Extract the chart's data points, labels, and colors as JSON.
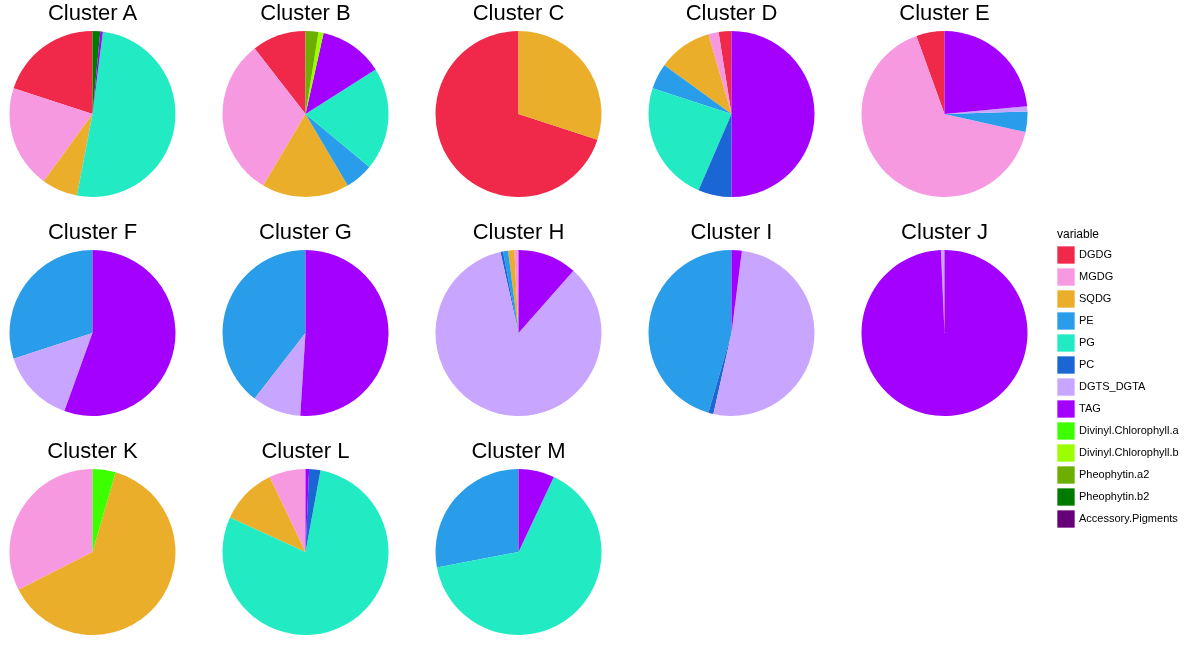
{
  "chart_data": [
    {
      "type": "pie",
      "title": "Cluster A",
      "legend": "right",
      "legend_title": "variable",
      "categories": [
        "DGDG",
        "MGDG",
        "SQDG",
        "PE",
        "PG",
        "PC",
        "DGTS_DGTA",
        "TAG",
        "Divinyl.Chlorophyll.a",
        "Divinyl.Chlorophyll.b",
        "Pheophytin.a2",
        "Pheophytin.b2",
        "Accessory.Pigments"
      ],
      "values": [
        20,
        20,
        7,
        0,
        51,
        0,
        0,
        0.5,
        0,
        0,
        0,
        1.5,
        0
      ],
      "colors": [
        "#f0284a",
        "#f799e1",
        "#ebae2b",
        "#299dea",
        "#22ebc4",
        "#1a66d4",
        "#c8a6ff",
        "#a300ff",
        "#3eff00",
        "#9bff00",
        "#6caf00",
        "#007b00",
        "#650078"
      ]
    },
    {
      "type": "pie",
      "title": "Cluster B",
      "categories": [
        null,
        null,
        null,
        null,
        null,
        null,
        null,
        null,
        null,
        null,
        null,
        null,
        null
      ],
      "values": [
        10.5,
        31,
        17,
        5.5,
        20,
        0,
        0,
        12.5,
        0,
        1,
        2.5,
        0,
        0
      ],
      "colors": [
        "#f0284a",
        "#f799e1",
        "#ebae2b",
        "#299dea",
        "#22ebc4",
        "#1a66d4",
        "#c8a6ff",
        "#a300ff",
        "#3eff00",
        "#9bff00",
        "#6caf00",
        "#007b00",
        "#650078"
      ]
    },
    {
      "type": "pie",
      "title": "Cluster C",
      "categories": [
        null,
        null,
        null,
        null,
        null,
        null,
        null,
        null,
        null,
        null,
        null,
        null,
        null
      ],
      "values": [
        70,
        0,
        30,
        0,
        0,
        0,
        0,
        0,
        0,
        0,
        0,
        0,
        0
      ],
      "colors": [
        "#f0284a",
        "#f799e1",
        "#ebae2b",
        "#299dea",
        "#22ebc4",
        "#1a66d4",
        "#c8a6ff",
        "#a300ff",
        "#3eff00",
        "#9bff00",
        "#6caf00",
        "#007b00",
        "#650078"
      ]
    },
    {
      "type": "pie",
      "title": "Cluster D",
      "categories": [
        null,
        null,
        null,
        null,
        null,
        null,
        null,
        null,
        null,
        null,
        null,
        null,
        null
      ],
      "values": [
        2.5,
        2,
        10.5,
        5,
        23.5,
        6.5,
        0,
        50,
        0,
        0,
        0,
        0,
        0
      ],
      "colors": [
        "#f0284a",
        "#f799e1",
        "#ebae2b",
        "#299dea",
        "#22ebc4",
        "#1a66d4",
        "#c8a6ff",
        "#a300ff",
        "#3eff00",
        "#9bff00",
        "#6caf00",
        "#007b00",
        "#650078"
      ]
    },
    {
      "type": "pie",
      "title": "Cluster E",
      "categories": [
        null,
        null,
        null,
        null,
        null,
        null,
        null,
        null,
        null,
        null,
        null,
        null,
        null
      ],
      "values": [
        5.5,
        66,
        0,
        4,
        0,
        0,
        1,
        23.5,
        0,
        0,
        0,
        0,
        0
      ],
      "colors": [
        "#f0284a",
        "#f799e1",
        "#ebae2b",
        "#299dea",
        "#22ebc4",
        "#1a66d4",
        "#c8a6ff",
        "#a300ff",
        "#3eff00",
        "#9bff00",
        "#6caf00",
        "#007b00",
        "#650078"
      ]
    },
    {
      "type": "pie",
      "title": "Cluster F",
      "categories": [
        null,
        null,
        null,
        null,
        null,
        null,
        null,
        null,
        null,
        null,
        null,
        null,
        null
      ],
      "values": [
        0,
        0,
        0,
        30,
        0,
        0,
        14.5,
        55.5,
        0,
        0,
        0,
        0,
        0
      ],
      "colors": [
        "#f0284a",
        "#f799e1",
        "#ebae2b",
        "#299dea",
        "#22ebc4",
        "#1a66d4",
        "#c8a6ff",
        "#a300ff",
        "#3eff00",
        "#9bff00",
        "#6caf00",
        "#007b00",
        "#650078"
      ]
    },
    {
      "type": "pie",
      "title": "Cluster G",
      "categories": [
        null,
        null,
        null,
        null,
        null,
        null,
        null,
        null,
        null,
        null,
        null,
        null,
        null
      ],
      "values": [
        0,
        0,
        0,
        39.5,
        0,
        0,
        9.5,
        51,
        0,
        0,
        0,
        0,
        0
      ],
      "colors": [
        "#f0284a",
        "#f799e1",
        "#ebae2b",
        "#299dea",
        "#22ebc4",
        "#1a66d4",
        "#c8a6ff",
        "#a300ff",
        "#3eff00",
        "#9bff00",
        "#6caf00",
        "#007b00",
        "#650078"
      ]
    },
    {
      "type": "pie",
      "title": "Cluster H",
      "categories": [
        null,
        null,
        null,
        null,
        null,
        null,
        null,
        null,
        null,
        null,
        null,
        null,
        null
      ],
      "values": [
        0,
        0.8,
        1.2,
        1,
        0,
        0.5,
        85,
        11.5,
        0,
        0,
        0,
        0,
        0
      ],
      "colors": [
        "#f0284a",
        "#f799e1",
        "#ebae2b",
        "#299dea",
        "#22ebc4",
        "#1a66d4",
        "#c8a6ff",
        "#a300ff",
        "#3eff00",
        "#9bff00",
        "#6caf00",
        "#007b00",
        "#650078"
      ]
    },
    {
      "type": "pie",
      "title": "Cluster I",
      "categories": [
        null,
        null,
        null,
        null,
        null,
        null,
        null,
        null,
        null,
        null,
        null,
        null,
        null
      ],
      "values": [
        0,
        0,
        0,
        45.5,
        0,
        1,
        51.5,
        2,
        0,
        0,
        0,
        0,
        0
      ],
      "colors": [
        "#f0284a",
        "#f799e1",
        "#ebae2b",
        "#299dea",
        "#22ebc4",
        "#1a66d4",
        "#c8a6ff",
        "#a300ff",
        "#3eff00",
        "#9bff00",
        "#6caf00",
        "#007b00",
        "#650078"
      ]
    },
    {
      "type": "pie",
      "title": "Cluster J",
      "categories": [
        null,
        null,
        null,
        null,
        null,
        null,
        null,
        null,
        null,
        null,
        null,
        null,
        null
      ],
      "values": [
        0,
        0,
        0,
        0,
        0,
        0,
        0.7,
        99.3,
        0,
        0,
        0,
        0,
        0
      ],
      "colors": [
        "#f0284a",
        "#f799e1",
        "#ebae2b",
        "#299dea",
        "#22ebc4",
        "#1a66d4",
        "#c8a6ff",
        "#a300ff",
        "#3eff00",
        "#9bff00",
        "#6caf00",
        "#007b00",
        "#650078"
      ]
    },
    {
      "type": "pie",
      "title": "Cluster K",
      "categories": [
        null,
        null,
        null,
        null,
        null,
        null,
        null,
        null,
        null,
        null,
        null,
        null,
        null
      ],
      "values": [
        0,
        32.5,
        63,
        0,
        0,
        0,
        0,
        0,
        4.5,
        0,
        0,
        0,
        0
      ],
      "colors": [
        "#f0284a",
        "#f799e1",
        "#ebae2b",
        "#299dea",
        "#22ebc4",
        "#1a66d4",
        "#c8a6ff",
        "#a300ff",
        "#3eff00",
        "#9bff00",
        "#6caf00",
        "#007b00",
        "#650078"
      ]
    },
    {
      "type": "pie",
      "title": "Cluster L",
      "categories": [
        null,
        null,
        null,
        null,
        null,
        null,
        null,
        null,
        null,
        null,
        null,
        null,
        null
      ],
      "values": [
        0,
        7.1,
        11.1,
        0,
        78.9,
        2.2,
        0,
        0.7,
        0,
        0,
        0,
        0,
        0
      ],
      "colors": [
        "#f0284a",
        "#f799e1",
        "#ebae2b",
        "#299dea",
        "#22ebc4",
        "#1a66d4",
        "#c8a6ff",
        "#a300ff",
        "#3eff00",
        "#9bff00",
        "#6caf00",
        "#007b00",
        "#650078"
      ]
    },
    {
      "type": "pie",
      "title": "Cluster M",
      "categories": [
        null,
        null,
        null,
        null,
        null,
        null,
        null,
        null,
        null,
        null,
        null,
        null,
        null
      ],
      "values": [
        0,
        0,
        0,
        28,
        65,
        0,
        0,
        7,
        0,
        0,
        0,
        0,
        0
      ],
      "colors": [
        "#f0284a",
        "#f799e1",
        "#ebae2b",
        "#299dea",
        "#22ebc4",
        "#1a66d4",
        "#c8a6ff",
        "#a300ff",
        "#3eff00",
        "#9bff00",
        "#6caf00",
        "#007b00",
        "#650078"
      ]
    }
  ]
}
